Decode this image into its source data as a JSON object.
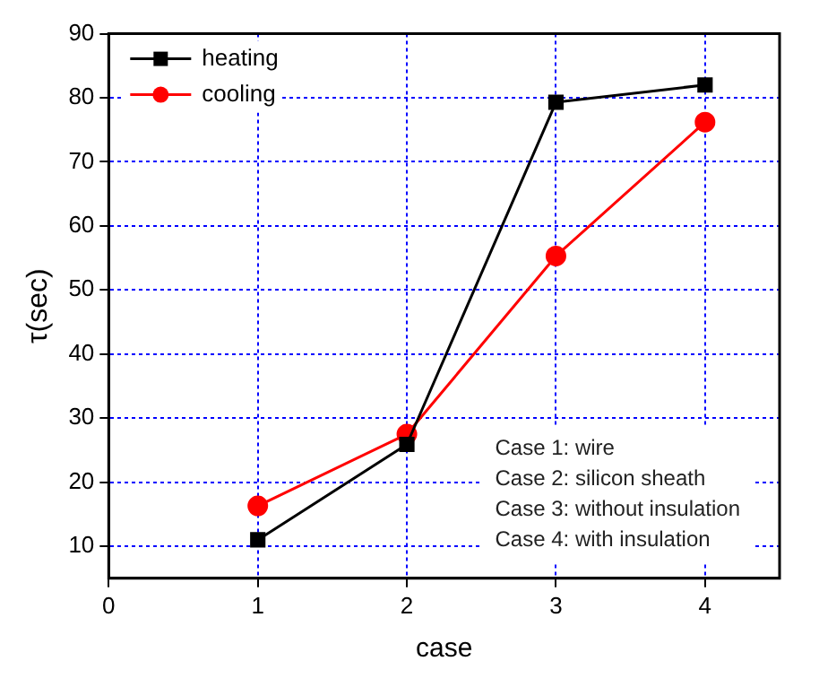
{
  "chart_data": {
    "type": "line",
    "xlabel": "case",
    "ylabel": "τ(sec)",
    "xlim": [
      0,
      4.5
    ],
    "xticks": [
      0,
      1,
      2,
      3,
      4
    ],
    "ylim": [
      5,
      90
    ],
    "yticks": [
      10,
      20,
      30,
      40,
      50,
      60,
      70,
      80,
      90
    ],
    "grid": true,
    "legend": "top left",
    "line_style": "solid",
    "series": [
      {
        "name": "heating",
        "color": "#000000",
        "marker": "square",
        "x": [
          1,
          2,
          3,
          4
        ],
        "values": [
          11.0,
          25.9,
          79.3,
          82.0
        ]
      },
      {
        "name": "cooling",
        "color": "#ff0000",
        "marker": "circle",
        "x": [
          1,
          2,
          3,
          4
        ],
        "values": [
          16.3,
          27.5,
          55.3,
          76.2
        ]
      }
    ],
    "annotations": [
      "Case 1: wire",
      "Case 2: silicon sheath",
      "Case 3: without insulation",
      "Case 4: with insulation"
    ]
  }
}
